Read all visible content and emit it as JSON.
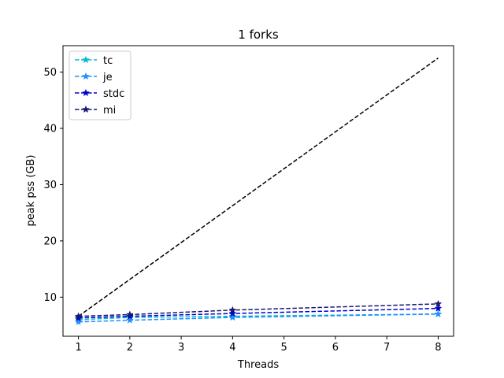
{
  "chart_data": {
    "type": "line",
    "title": "1 forks",
    "xlabel": "Threads",
    "ylabel": "peak pss (GB)",
    "x": [
      1,
      2,
      4,
      8
    ],
    "xlim": [
      0.7,
      8.3
    ],
    "ylim": [
      3.05,
      54.7
    ],
    "xticks": [
      1,
      2,
      3,
      4,
      5,
      6,
      7,
      8
    ],
    "yticks": [
      10,
      20,
      30,
      40,
      50
    ],
    "grid": false,
    "legend": "top-left",
    "series": [
      {
        "name": "tc",
        "color": "#00bcd4",
        "marker": "star",
        "values": [
          6.0,
          6.4,
          6.6,
          7.0
        ]
      },
      {
        "name": "je",
        "color": "#1e90ff",
        "marker": "star",
        "values": [
          5.6,
          5.9,
          6.4,
          7.0
        ]
      },
      {
        "name": "stdc",
        "color": "#0000cd",
        "marker": "star",
        "values": [
          6.3,
          6.6,
          7.1,
          8.0
        ]
      },
      {
        "name": "mi",
        "color": "#191970",
        "marker": "star",
        "values": [
          6.6,
          6.9,
          7.7,
          8.8
        ]
      }
    ],
    "reference_line": {
      "color": "#000000",
      "x": [
        1,
        8
      ],
      "values": [
        6.6,
        52.5
      ]
    }
  }
}
